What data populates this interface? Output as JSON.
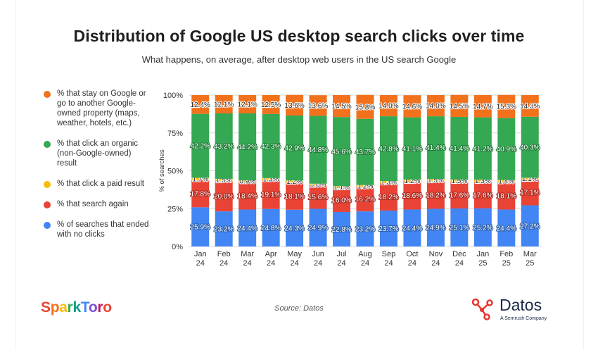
{
  "title": "Distribution of Google US desktop search clicks over time",
  "subtitle": "What happens, on average, after desktop web users in the US search Google",
  "legend": [
    {
      "label": "% that stay on Google or go to another Google-owned property (maps, weather, hotels, etc.)",
      "color": "#f2711c"
    },
    {
      "label": "% that click an organic (non-Google-owned) result",
      "color": "#34a853"
    },
    {
      "label": "% that click a paid result",
      "color": "#f9bc0b"
    },
    {
      "label": "% that search again",
      "color": "#e94335"
    },
    {
      "label": "% of searches that ended with no clicks",
      "color": "#4285f4"
    }
  ],
  "source": "Source: Datos",
  "brand_left": "SparkToro",
  "brand_right": "Datos",
  "brand_right_sub": "A Semrush Company",
  "chart_data": {
    "type": "bar",
    "stacked": true,
    "title": "Distribution of Google US desktop search clicks over time",
    "xlabel": "",
    "ylabel": "% of searches",
    "ylim": [
      0,
      100
    ],
    "yticks": [
      "0%",
      "25%",
      "50%",
      "75%",
      "100%"
    ],
    "categories": [
      "Jan 24",
      "Feb 24",
      "Mar 24",
      "Apr 24",
      "May 24",
      "Jun 24",
      "Jul 24",
      "Aug 24",
      "Sep 24",
      "Oct 24",
      "Nov 24",
      "Dec 24",
      "Jan 25",
      "Feb 25",
      "Mar 25"
    ],
    "series": [
      {
        "name": "% of searches that ended with no clicks",
        "color": "#4285f4",
        "values": [
          25.9,
          23.2,
          24.4,
          24.8,
          24.3,
          24.9,
          22.8,
          23.2,
          23.7,
          24.4,
          24.9,
          25.1,
          25.2,
          24.4,
          27.2
        ]
      },
      {
        "name": "% that search again",
        "color": "#e94335",
        "values": [
          17.8,
          20.0,
          18.4,
          19.1,
          18.1,
          15.6,
          16.0,
          16.2,
          18.2,
          18.6,
          18.2,
          17.6,
          17.6,
          18.1,
          17.1
        ]
      },
      {
        "name": "% that click a paid result",
        "color": "#f9bc0b",
        "values": [
          1.7,
          1.5,
          0.9,
          1.3,
          1.2,
          1.0,
          1.1,
          1.2,
          1.3,
          1.2,
          1.5,
          1.5,
          1.3,
          1.4,
          1.1
        ]
      },
      {
        "name": "% that click an organic (non-Google-owned) result",
        "color": "#34a853",
        "values": [
          42.2,
          43.2,
          44.2,
          42.3,
          42.9,
          44.8,
          45.6,
          43.7,
          42.8,
          41.1,
          41.4,
          41.4,
          41.2,
          40.9,
          40.3
        ]
      },
      {
        "name": "% that stay on Google or go to another Google-owned property (maps, weather, hotels, etc.)",
        "color": "#f2711c",
        "values": [
          12.4,
          12.1,
          12.1,
          12.5,
          13.6,
          13.6,
          14.5,
          15.8,
          14.0,
          14.6,
          14.0,
          14.5,
          14.7,
          15.3,
          14.3
        ]
      }
    ],
    "value_labels": [
      [
        "25.9%",
        "23.2%",
        "24.4%",
        "24.8%",
        "24.3%",
        "24.9%",
        "22.8%",
        "23.2%",
        "23.7%",
        "24.4%",
        "24.9%",
        "25.1%",
        "25.2%",
        "24.4%",
        "27.2%"
      ],
      [
        "17.8%",
        "20.0%",
        "18.4%",
        "19.1%",
        "18.1%",
        "15.6%",
        "16.0%",
        "16.2%",
        "18.2%",
        "18.6%",
        "18.2%",
        "17.6%",
        "17.6%",
        "18.1%",
        "17.1%"
      ],
      [
        "1.7%",
        "1.5%",
        "0.9%",
        "1.3%",
        "1.2%",
        "1.0%",
        "1.1%",
        "1.2%",
        "1.3%",
        "1.2%",
        "1.5%",
        "1.5%",
        "1.3%",
        "1.4%",
        "1.1%"
      ],
      [
        "42.2%",
        "43.2%",
        "44.2%",
        "42.3%",
        "42.9%",
        "44.8%",
        "45.6%",
        "43.7%",
        "42.8%",
        "41.1%",
        "41.4%",
        "41.4%",
        "41.2%",
        "40.9%",
        "40.3%"
      ],
      [
        "12.4%",
        "12.1%",
        "12.1%",
        "12.5%",
        "13.6%",
        "13.6%",
        "14.5%",
        "15.8%",
        "14.0%",
        "14.6%",
        "14.0%",
        "14.5%",
        "14.7%",
        "15.3%",
        "14.3%"
      ]
    ],
    "grid": true,
    "legend_position": "left"
  }
}
